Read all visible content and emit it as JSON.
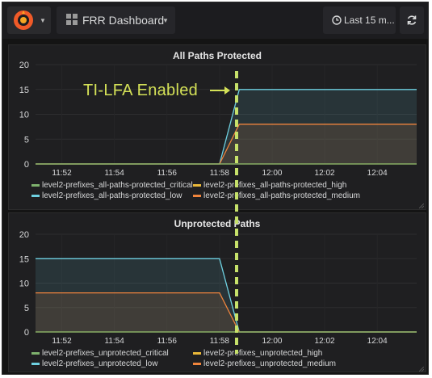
{
  "navbar": {
    "logo_icon": "grafana-logo-icon",
    "dashboard_icon": "grid-icon",
    "dashboard_title": "FRR Dashboard",
    "time_range": "Last 15 m...",
    "clock_icon": "clock-icon",
    "refresh_icon": "refresh-icon"
  },
  "annotation": {
    "label": "TI-LFA Enabled",
    "arrow_icon": "arrow-right-icon",
    "color": "#d4e157"
  },
  "panels": [
    {
      "title": "All Paths Protected",
      "legend": [
        {
          "label": "level2-prefixes_all-paths-protected_critical",
          "color": "#7eb26d"
        },
        {
          "label": "level2-prefixes_all-paths-protected_high",
          "color": "#eab839"
        },
        {
          "label": "level2-prefixes_all-paths-protected_low",
          "color": "#6ed0e0"
        },
        {
          "label": "level2-prefixes_all-paths-protected_medium",
          "color": "#ef843c"
        }
      ]
    },
    {
      "title": "Unprotected Paths",
      "legend": [
        {
          "label": "level2-prefixes_unprotected_critical",
          "color": "#7eb26d"
        },
        {
          "label": "level2-prefixes_unprotected_high",
          "color": "#eab839"
        },
        {
          "label": "level2-prefixes_unprotected_low",
          "color": "#6ed0e0"
        },
        {
          "label": "level2-prefixes_unprotected_medium",
          "color": "#ef843c"
        }
      ]
    }
  ],
  "chart_data": [
    {
      "type": "area",
      "title": "All Paths Protected",
      "x": [
        "11:51",
        "11:52",
        "11:54",
        "11:56",
        "11:58",
        "11:58:45",
        "12:00",
        "12:02",
        "12:04",
        "12:05:30"
      ],
      "x_ticks": [
        "11:52",
        "11:54",
        "11:56",
        "11:58",
        "12:00",
        "12:02",
        "12:04"
      ],
      "y_ticks": [
        "0",
        "5",
        "10",
        "15",
        "20"
      ],
      "ylim": [
        0,
        20
      ],
      "series": [
        {
          "name": "level2-prefixes_all-paths-protected_critical",
          "color": "#7eb26d",
          "values": [
            0,
            0,
            0,
            0,
            0,
            0,
            0,
            0,
            0,
            0
          ]
        },
        {
          "name": "level2-prefixes_all-paths-protected_high",
          "color": "#eab839",
          "values": [
            0,
            0,
            0,
            0,
            0,
            0,
            0,
            0,
            0,
            0
          ]
        },
        {
          "name": "level2-prefixes_all-paths-protected_low",
          "color": "#6ed0e0",
          "values": [
            0,
            0,
            0,
            0,
            0,
            15,
            15,
            15,
            15,
            15
          ]
        },
        {
          "name": "level2-prefixes_all-paths-protected_medium",
          "color": "#ef843c",
          "values": [
            0,
            0,
            0,
            0,
            0,
            8,
            8,
            8,
            8,
            8
          ]
        }
      ],
      "grid": true
    },
    {
      "type": "area",
      "title": "Unprotected Paths",
      "x": [
        "11:51",
        "11:52",
        "11:54",
        "11:56",
        "11:58",
        "11:58:45",
        "12:00",
        "12:02",
        "12:04",
        "12:05:30"
      ],
      "x_ticks": [
        "11:52",
        "11:54",
        "11:56",
        "11:58",
        "12:00",
        "12:02",
        "12:04"
      ],
      "y_ticks": [
        "0",
        "5",
        "10",
        "15",
        "20"
      ],
      "ylim": [
        0,
        20
      ],
      "series": [
        {
          "name": "level2-prefixes_unprotected_critical",
          "color": "#7eb26d",
          "values": [
            0,
            0,
            0,
            0,
            0,
            0,
            0,
            0,
            0,
            0
          ]
        },
        {
          "name": "level2-prefixes_unprotected_high",
          "color": "#eab839",
          "values": [
            0,
            0,
            0,
            0,
            0,
            0,
            0,
            0,
            0,
            0
          ]
        },
        {
          "name": "level2-prefixes_unprotected_low",
          "color": "#6ed0e0",
          "values": [
            15,
            15,
            15,
            15,
            15,
            0,
            0,
            0,
            0,
            0
          ]
        },
        {
          "name": "level2-prefixes_unprotected_medium",
          "color": "#ef843c",
          "values": [
            8,
            8,
            8,
            8,
            8,
            0,
            0,
            0,
            0,
            0
          ]
        }
      ],
      "grid": true
    }
  ]
}
